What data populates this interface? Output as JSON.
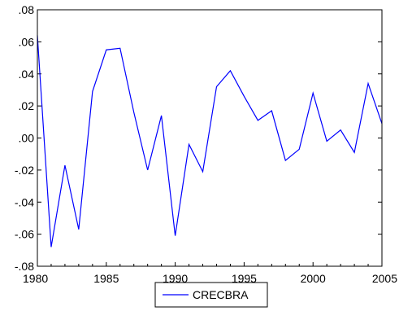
{
  "chart_data": {
    "type": "line",
    "title": "",
    "xlabel": "",
    "ylabel": "",
    "xlim": [
      1980,
      2005
    ],
    "ylim": [
      -0.08,
      0.08
    ],
    "grid": false,
    "legend_position": "bottom-center",
    "x_ticks": [
      1980,
      1985,
      1990,
      1995,
      2000,
      2005
    ],
    "x_tick_labels": [
      "1980",
      "1985",
      "1990",
      "1995",
      "2000",
      "2005"
    ],
    "y_ticks": [
      0.08,
      0.06,
      0.04,
      0.02,
      0.0,
      -0.02,
      -0.04,
      -0.06,
      -0.08
    ],
    "y_tick_labels": [
      ".08",
      ".06",
      ".04",
      ".02",
      ".00",
      "-.02",
      "-.04",
      "-.06",
      "-.08"
    ],
    "x": [
      1980,
      1981,
      1982,
      1983,
      1984,
      1985,
      1986,
      1987,
      1988,
      1989,
      1990,
      1991,
      1992,
      1993,
      1994,
      1995,
      1996,
      1997,
      1998,
      1999,
      2000,
      2001,
      2002,
      2003,
      2004,
      2005
    ],
    "series": [
      {
        "name": "CRECBRA",
        "color": "#0000ff",
        "values": [
          0.064,
          -0.068,
          -0.017,
          -0.057,
          0.029,
          0.055,
          0.056,
          0.016,
          -0.02,
          0.014,
          -0.061,
          -0.004,
          -0.021,
          0.032,
          0.042,
          0.026,
          0.011,
          0.017,
          -0.014,
          -0.007,
          0.028,
          -0.002,
          0.005,
          -0.009,
          0.034,
          0.009
        ]
      }
    ]
  }
}
